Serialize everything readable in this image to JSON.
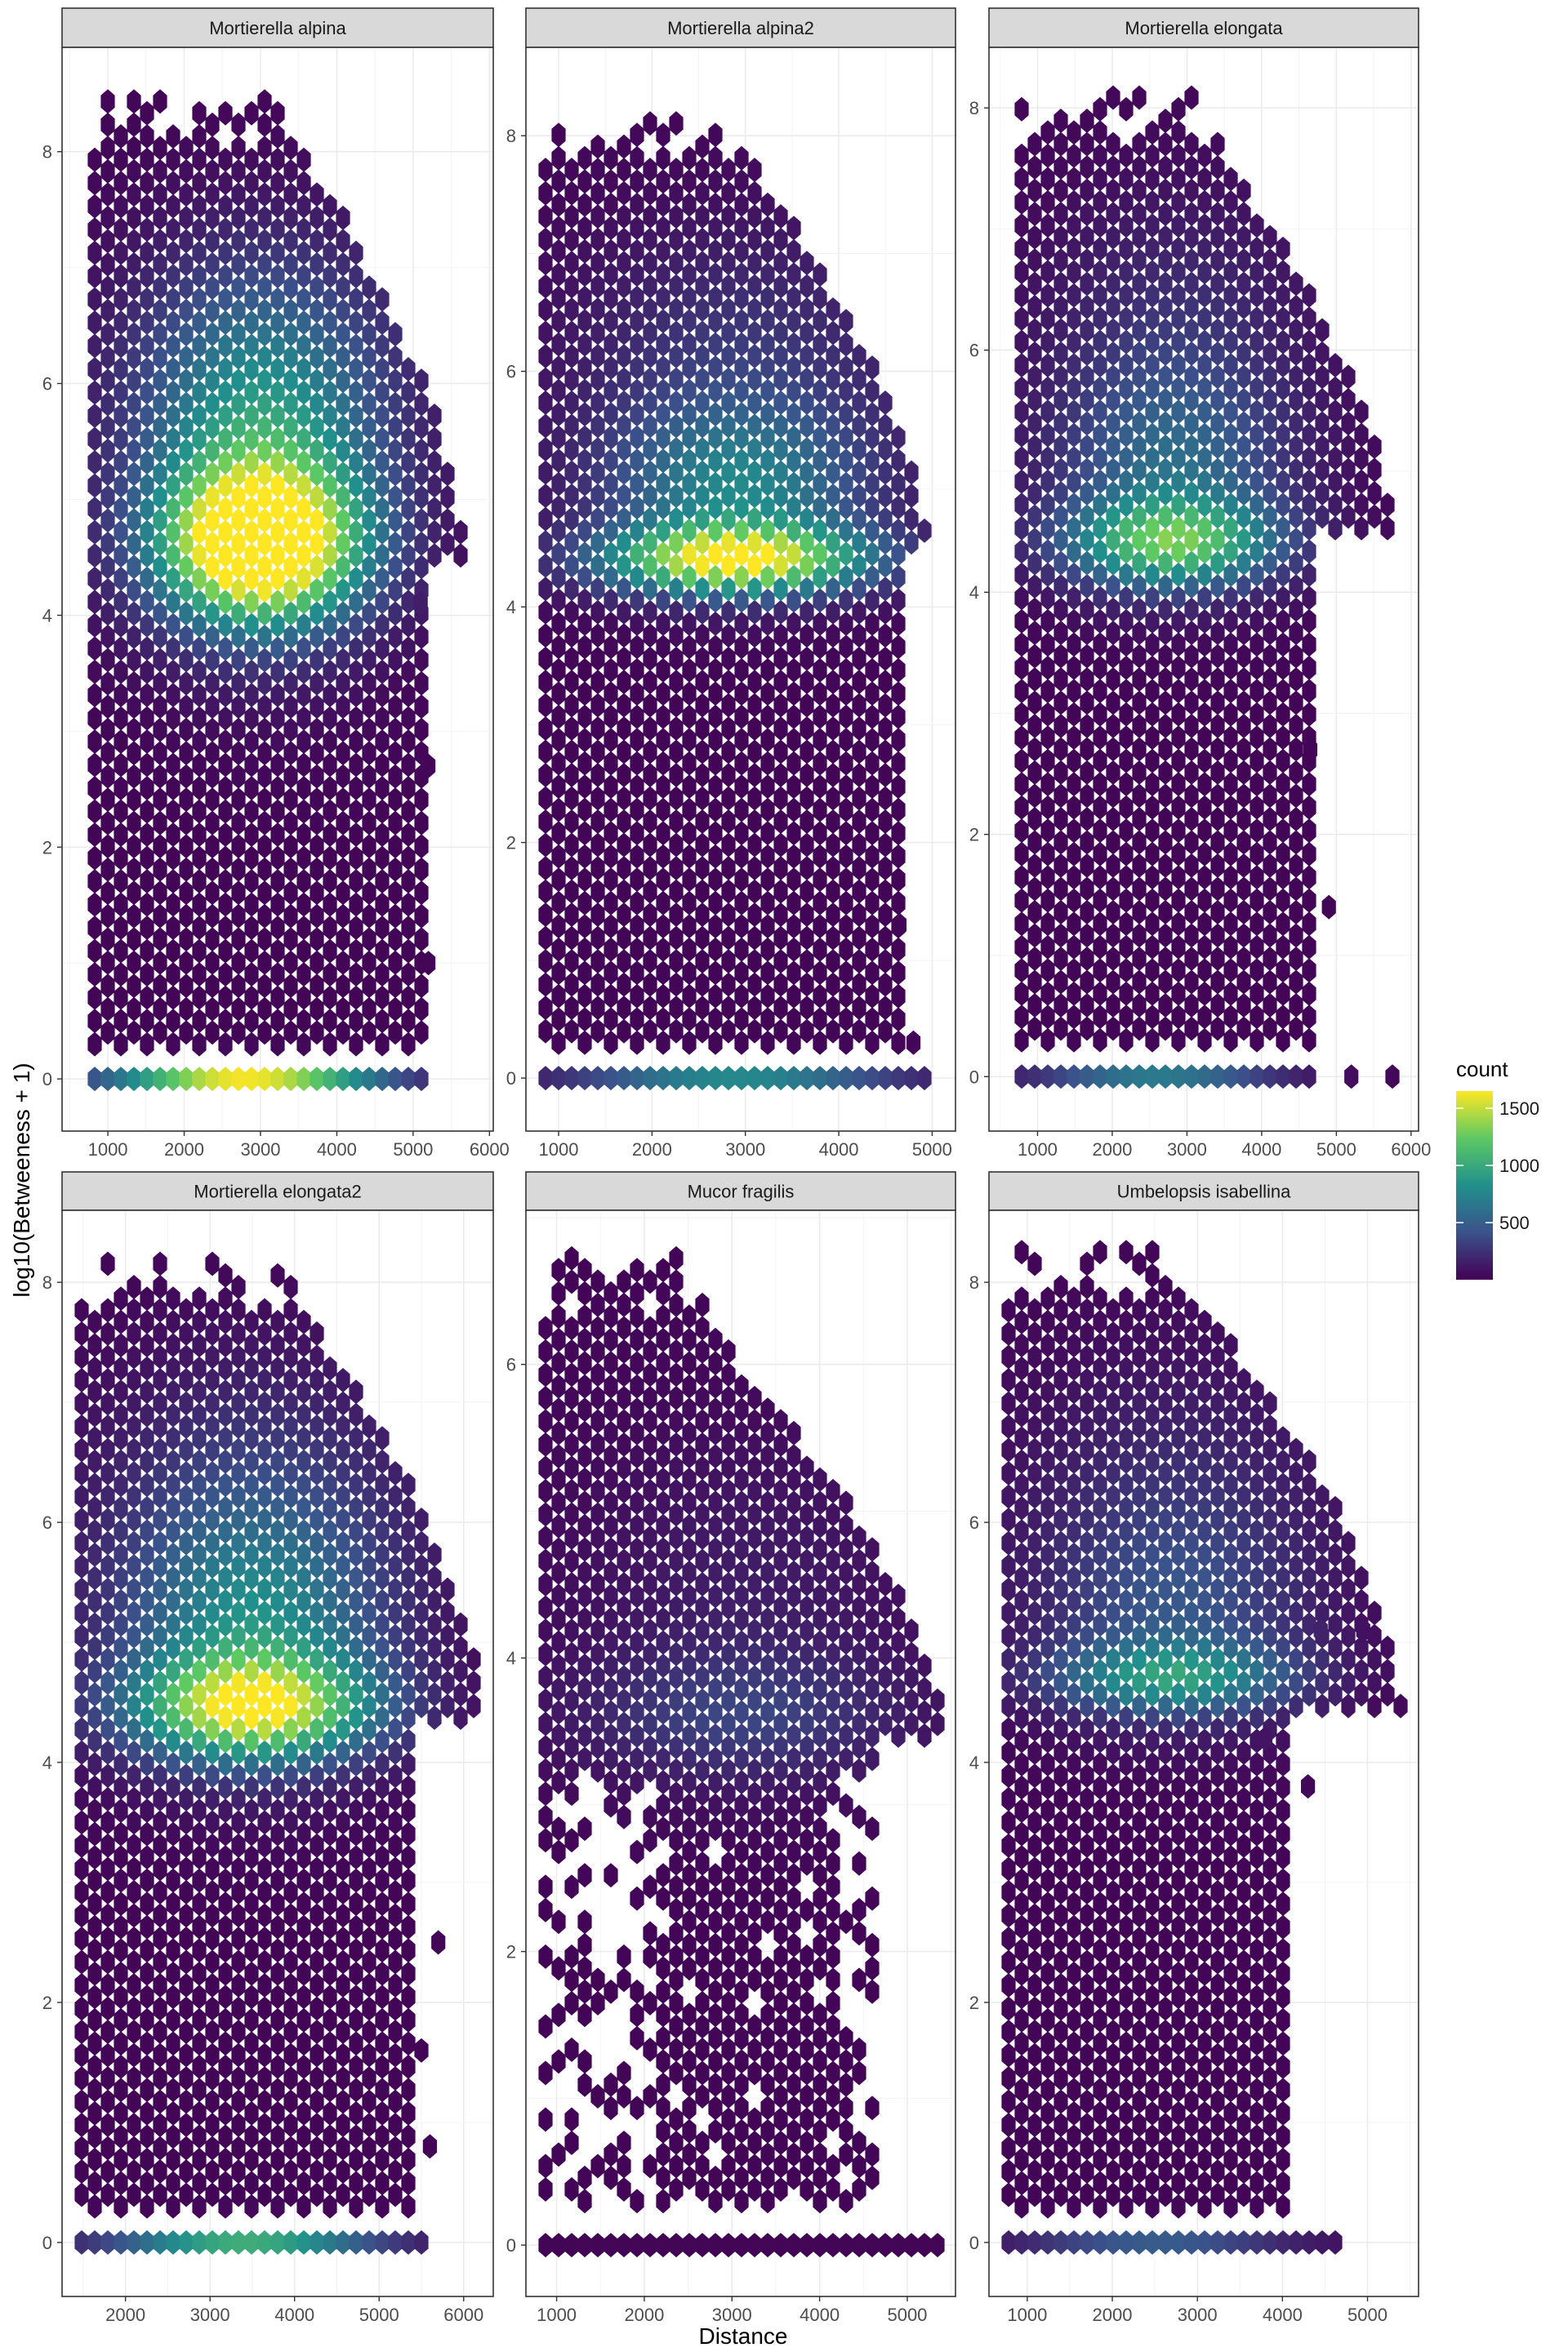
{
  "chart_data": {
    "type": "hexbin",
    "layout": "facet_wrap 2 rows x 3 columns",
    "xlabel": "Distance",
    "ylabel": "log10(Betweeness + 1)",
    "legend": {
      "title": "count",
      "position": "right",
      "breaks": [
        500,
        1000,
        1500
      ],
      "range": [
        1,
        1650
      ],
      "colors": [
        "#440154",
        "#3b528b",
        "#21908c",
        "#5dc963",
        "#fde725"
      ]
    },
    "facets": [
      {
        "title": "Mortierella alpina",
        "xlim": [
          400,
          6050
        ],
        "ylim": [
          -0.45,
          8.9
        ],
        "xticks": [
          1000,
          2000,
          3000,
          4000,
          5000,
          6000
        ],
        "yticks": [
          0,
          2,
          4,
          6,
          8
        ],
        "shape": {
          "ymax": 8.45,
          "x_top_right": 3700,
          "x_right_max": 5700,
          "x_left_min": 700,
          "break_y": 4.45,
          "right_below_break": 5150,
          "base_x": [
            800,
            5200
          ]
        },
        "hot_spots": [
          {
            "x": 3000,
            "y": 4.6,
            "count": 1650,
            "sx": 900,
            "sy": 0.45
          },
          {
            "x": 3000,
            "y": 5.2,
            "count": 800,
            "sx": 1100,
            "sy": 0.9
          },
          {
            "x": 3000,
            "y": 6.3,
            "count": 300,
            "sx": 1300,
            "sy": 0.8
          },
          {
            "x": 2800,
            "y": 0,
            "count": 1600,
            "sx": 1200,
            "sy": 0.1
          }
        ],
        "rare_bins": [
          {
            "x": 5100,
            "y": 4.1
          },
          {
            "x": 5200,
            "y": 2.7
          },
          {
            "x": 5200,
            "y": 1.0
          }
        ]
      },
      {
        "title": "Mortierella alpina2",
        "xlim": [
          650,
          5250
        ],
        "ylim": [
          -0.45,
          8.75
        ],
        "xticks": [
          1000,
          2000,
          3000,
          4000,
          5000
        ],
        "yticks": [
          0,
          2,
          4,
          6,
          8
        ],
        "shape": {
          "ymax": 8.2,
          "x_top_right": 3200,
          "x_right_max": 4950,
          "x_left_min": 800,
          "break_y": 4.5,
          "right_below_break": 4650,
          "base_x": [
            850,
            5000
          ]
        },
        "hot_spots": [
          {
            "x": 2900,
            "y": 4.4,
            "count": 1450,
            "sx": 1000,
            "sy": 0.2
          },
          {
            "x": 2900,
            "y": 5.0,
            "count": 650,
            "sx": 1000,
            "sy": 0.5
          },
          {
            "x": 2900,
            "y": 6.1,
            "count": 250,
            "sx": 1300,
            "sy": 0.8
          },
          {
            "x": 2900,
            "y": 0,
            "count": 750,
            "sx": 1200,
            "sy": 0.1
          }
        ],
        "rare_bins": [
          {
            "x": 4650,
            "y": 1.3
          },
          {
            "x": 4800,
            "y": 0.3
          }
        ]
      },
      {
        "title": "Mortierella elongata",
        "xlim": [
          350,
          6100
        ],
        "ylim": [
          -0.45,
          8.5
        ],
        "xticks": [
          1000,
          2000,
          3000,
          4000,
          5000,
          6000
        ],
        "yticks": [
          0,
          2,
          4,
          6,
          8
        ],
        "shape": {
          "ymax": 8.1,
          "x_top_right": 3600,
          "x_right_max": 5750,
          "x_left_min": 650,
          "break_y": 4.45,
          "right_below_break": 4650,
          "base_x": [
            700,
            4800
          ]
        },
        "hot_spots": [
          {
            "x": 2800,
            "y": 4.4,
            "count": 1000,
            "sx": 1000,
            "sy": 0.25
          },
          {
            "x": 2800,
            "y": 5.0,
            "count": 500,
            "sx": 1100,
            "sy": 0.6
          },
          {
            "x": 2800,
            "y": 6.2,
            "count": 200,
            "sx": 1300,
            "sy": 0.8
          },
          {
            "x": 2600,
            "y": 0,
            "count": 650,
            "sx": 1100,
            "sy": 0.1
          }
        ],
        "rare_bins": [
          {
            "x": 5200,
            "y": 0
          },
          {
            "x": 5750,
            "y": 0
          },
          {
            "x": 4900,
            "y": 1.4
          },
          {
            "x": 4650,
            "y": 2.7
          }
        ]
      },
      {
        "title": "Mortierella elongata2",
        "xlim": [
          1250,
          6350
        ],
        "ylim": [
          -0.45,
          8.6
        ],
        "xticks": [
          2000,
          3000,
          4000,
          5000,
          6000
        ],
        "yticks": [
          0,
          2,
          4,
          6,
          8
        ],
        "shape": {
          "ymax": 8.2,
          "x_top_right": 4300,
          "x_right_max": 6250,
          "x_left_min": 1400,
          "break_y": 4.3,
          "right_below_break": 5400,
          "base_x": [
            1450,
            5600
          ]
        },
        "hot_spots": [
          {
            "x": 3500,
            "y": 4.45,
            "count": 1300,
            "sx": 1000,
            "sy": 0.3
          },
          {
            "x": 3500,
            "y": 5.1,
            "count": 700,
            "sx": 1100,
            "sy": 0.7
          },
          {
            "x": 3500,
            "y": 6.3,
            "count": 250,
            "sx": 1300,
            "sy": 0.8
          },
          {
            "x": 3400,
            "y": 0,
            "count": 1000,
            "sx": 1100,
            "sy": 0.1
          }
        ],
        "rare_bins": [
          {
            "x": 5700,
            "y": 2.5
          },
          {
            "x": 5500,
            "y": 1.6
          },
          {
            "x": 5600,
            "y": 0.8
          }
        ]
      },
      {
        "title": "Mucor fragilis",
        "xlim": [
          650,
          5550
        ],
        "ylim": [
          -0.35,
          7.05
        ],
        "xticks": [
          1000,
          2000,
          3000,
          4000,
          5000
        ],
        "yticks": [
          0,
          2,
          4,
          6
        ],
        "shape": {
          "ymax": 6.75,
          "x_top_right": 2900,
          "x_right_max": 5450,
          "x_left_min": 850,
          "break_y": 3.4,
          "right_below_break": 4700,
          "base_x": [
            800,
            5400
          ],
          "sparse_below_break": true
        },
        "hot_spots": [
          {
            "x": 3100,
            "y": 3.6,
            "count": 260,
            "sx": 1300,
            "sy": 0.3
          },
          {
            "x": 3100,
            "y": 4.4,
            "count": 120,
            "sx": 1400,
            "sy": 0.8
          }
        ],
        "rare_bins": []
      },
      {
        "title": "Umbelopsis isabellina",
        "xlim": [
          550,
          5600
        ],
        "ylim": [
          -0.45,
          8.6
        ],
        "xticks": [
          1000,
          2000,
          3000,
          4000,
          5000
        ],
        "yticks": [
          0,
          2,
          4,
          6,
          8
        ],
        "shape": {
          "ymax": 8.3,
          "x_top_right": 3200,
          "x_right_max": 5400,
          "x_left_min": 700,
          "break_y": 4.45,
          "right_below_break": 4100,
          "base_x": [
            750,
            4700
          ]
        },
        "hot_spots": [
          {
            "x": 2700,
            "y": 4.7,
            "count": 700,
            "sx": 1000,
            "sy": 0.2
          },
          {
            "x": 2700,
            "y": 5.2,
            "count": 350,
            "sx": 1100,
            "sy": 0.6
          },
          {
            "x": 2700,
            "y": 6.3,
            "count": 180,
            "sx": 1300,
            "sy": 0.8
          },
          {
            "x": 2500,
            "y": 0,
            "count": 450,
            "sx": 1100,
            "sy": 0.1
          }
        ],
        "rare_bins": [
          {
            "x": 4950,
            "y": 5.1
          },
          {
            "x": 4450,
            "y": 5.1
          },
          {
            "x": 3800,
            "y": 4.2
          },
          {
            "x": 4300,
            "y": 3.8
          }
        ]
      }
    ]
  }
}
